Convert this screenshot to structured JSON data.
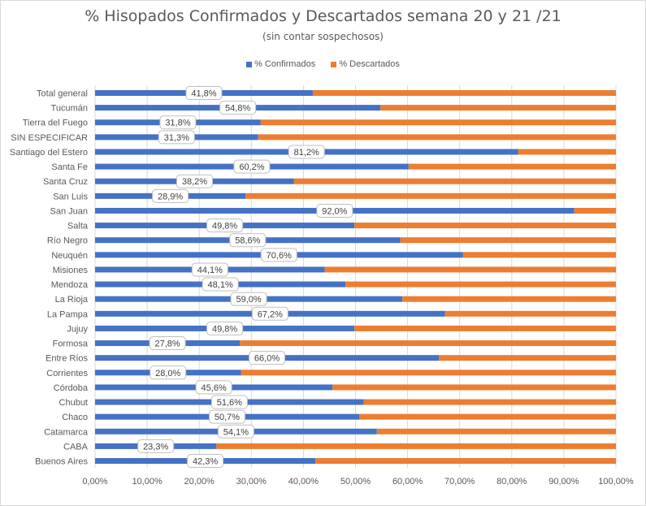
{
  "chart_data": {
    "type": "bar",
    "orientation": "horizontal",
    "stacked": "percent",
    "title": "% Hisopados Confirmados y Descartados semana 20 y 21 /21",
    "subtitle": "(sin contar sospechosos)",
    "categories": [
      "Total general",
      "Tucumán",
      "Tierra del Fuego",
      "SIN ESPECIFICAR",
      "Santiago del Estero",
      "Santa Fe",
      "Santa Cruz",
      "San Luis",
      "San Juan",
      "Salta",
      "Río Negro",
      "Neuquén",
      "Misiones",
      "Mendoza",
      "La Rioja",
      "La Pampa",
      "Jujuy",
      "Formosa",
      "Entre Ríos",
      "Corrientes",
      "Córdoba",
      "Chubut",
      "Chaco",
      "Catamarca",
      "CABA",
      "Buenos Aires"
    ],
    "series": [
      {
        "name": "% Confirmados",
        "color": "#4472c4",
        "values": [
          41.8,
          54.8,
          31.8,
          31.3,
          81.2,
          60.2,
          38.2,
          28.9,
          92.0,
          49.8,
          58.6,
          70.6,
          44.1,
          48.1,
          59.0,
          67.2,
          49.8,
          27.8,
          66.0,
          28.0,
          45.6,
          51.6,
          50.7,
          54.1,
          23.3,
          42.3
        ],
        "labels": [
          "41,8%",
          "54,8%",
          "31,8%",
          "31,3%",
          "81,2%",
          "60,2%",
          "38,2%",
          "28,9%",
          "92,0%",
          "49,8%",
          "58,6%",
          "70,6%",
          "44,1%",
          "48,1%",
          "59,0%",
          "67,2%",
          "49,8%",
          "27,8%",
          "66,0%",
          "28,0%",
          "45,6%",
          "51,6%",
          "50,7%",
          "54,1%",
          "23,3%",
          "42,3%"
        ]
      },
      {
        "name": "% Descartados",
        "color": "#ed7d31",
        "values": [
          58.2,
          45.2,
          68.2,
          68.7,
          18.8,
          39.8,
          61.8,
          71.1,
          8.0,
          50.2,
          41.4,
          29.4,
          55.9,
          51.9,
          41.0,
          32.8,
          50.2,
          72.2,
          34.0,
          72.0,
          54.4,
          48.4,
          49.3,
          45.9,
          76.7,
          57.7
        ]
      }
    ],
    "xlim": [
      0,
      100
    ],
    "xticks": [
      "0,00%",
      "10,00%",
      "20,00%",
      "30,00%",
      "40,00%",
      "50,00%",
      "60,00%",
      "70,00%",
      "80,00%",
      "90,00%",
      "100,00%"
    ],
    "grid": true,
    "legend_position": "top"
  }
}
